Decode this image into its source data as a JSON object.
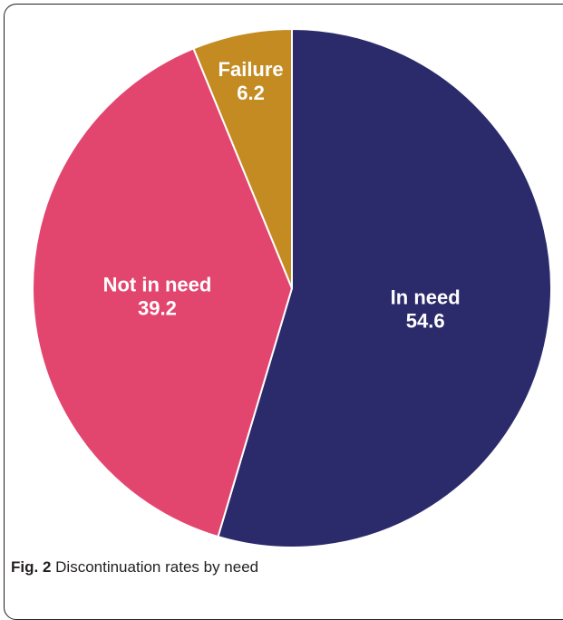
{
  "caption": {
    "figure_number": "Fig. 2",
    "text": "Discontinuation rates by need"
  },
  "chart_data": {
    "type": "pie",
    "title": "",
    "slices": [
      {
        "label": "In need",
        "value": 54.6,
        "value_label": "54.6",
        "color": "#2b2a6b"
      },
      {
        "label": "Not in need",
        "value": 39.2,
        "value_label": "39.2",
        "color": "#e2466f"
      },
      {
        "label": "Failure",
        "value": 6.2,
        "value_label": "6.2",
        "color": "#c38b21"
      }
    ],
    "start_angle_deg": 0,
    "direction": "clockwise"
  }
}
